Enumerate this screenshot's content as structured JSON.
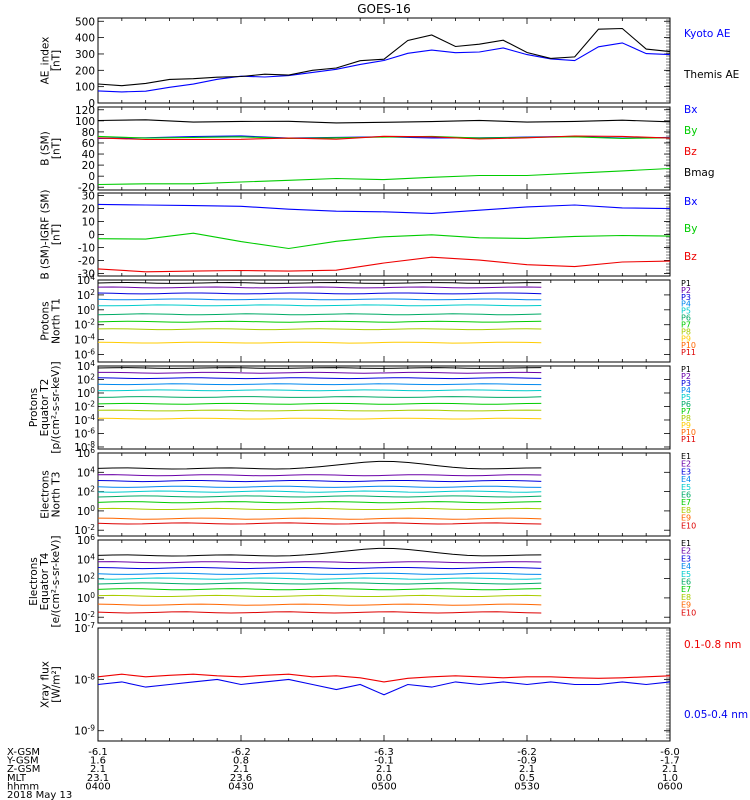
{
  "title": "GOES-16",
  "footer": {
    "rows": [
      {
        "label": "X-GSM",
        "values": [
          "-6.1",
          "-6.2",
          "-6.3",
          "-6.2",
          "-6.0"
        ]
      },
      {
        "label": "Y-GSM",
        "values": [
          "1.6",
          "0.8",
          "-0.1",
          "-0.9",
          "-1.7"
        ]
      },
      {
        "label": "Z-GSM",
        "values": [
          "2.1",
          "2.1",
          "2.1",
          "2.1",
          "2.1"
        ]
      },
      {
        "label": "MLT",
        "values": [
          "23.1",
          "23.6",
          "0.0",
          "0.5",
          "1.0"
        ]
      },
      {
        "label": "hhmm",
        "values": [
          "0400",
          "0430",
          "0500",
          "0530",
          "0600"
        ]
      }
    ],
    "date": "2018 May 13"
  },
  "chart_data": [
    {
      "id": "ae",
      "type": "line",
      "ylabel": [
        "AE_index",
        "[nT]"
      ],
      "yticks": [
        "0",
        "100",
        "200",
        "300",
        "400",
        "500"
      ],
      "ylim": [
        0,
        520
      ],
      "x": [
        0,
        5,
        10,
        15,
        20,
        25,
        30,
        35,
        40,
        45,
        50,
        55,
        60,
        65,
        70,
        75,
        80,
        85,
        90,
        95,
        100,
        105,
        110,
        115,
        120
      ],
      "series": [
        {
          "name": "Kyoto AE",
          "color": "#0000ff",
          "values": [
            80,
            70,
            70,
            90,
            120,
            145,
            160,
            165,
            170,
            185,
            200,
            240,
            260,
            300,
            330,
            310,
            310,
            330,
            300,
            270,
            255,
            350,
            370,
            300,
            290
          ]
        },
        {
          "name": "Themis AE",
          "color": "#000000",
          "values": [
            110,
            110,
            120,
            140,
            155,
            160,
            160,
            170,
            175,
            200,
            210,
            265,
            270,
            380,
            410,
            350,
            360,
            380,
            315,
            275,
            280,
            445,
            460,
            330,
            310
          ]
        }
      ]
    },
    {
      "id": "bsm",
      "type": "line",
      "ylabel": [
        "B (SM)",
        "[nT]"
      ],
      "yticks": [
        "-20",
        "0",
        "20",
        "40",
        "60",
        "80",
        "100",
        "120"
      ],
      "ylim": [
        -25,
        125
      ],
      "x": [
        0,
        10,
        20,
        30,
        40,
        50,
        60,
        70,
        80,
        90,
        100,
        110,
        120
      ],
      "series": [
        {
          "name": "Bx",
          "color": "#0000ff",
          "values": [
            70,
            70,
            71,
            71,
            70,
            70,
            70,
            71,
            70,
            70,
            70,
            70,
            70
          ]
        },
        {
          "name": "By",
          "color": "#00cc00",
          "values": [
            70,
            70,
            70,
            70,
            70,
            70,
            70,
            70,
            70,
            70,
            70,
            70,
            70
          ]
        },
        {
          "name": "Bz",
          "color": "#ee0000",
          "values": [
            68,
            68,
            67,
            66,
            67,
            68,
            72,
            70,
            69,
            70,
            72,
            70,
            70
          ]
        },
        {
          "name": "Bmag",
          "color": "#000000",
          "values": [
            100,
            100,
            99,
            99,
            98,
            98,
            98,
            98,
            99,
            99,
            99,
            100,
            100
          ]
        },
        {
          "name": "",
          "color": "#00cc00",
          "values": [
            -15,
            -15,
            -12,
            -10,
            -8,
            -6,
            -5,
            -2,
            0,
            3,
            6,
            9,
            12
          ]
        }
      ]
    },
    {
      "id": "bigrf",
      "type": "line",
      "ylabel": [
        "B (SM)-IGRF (SM)",
        "[nT]"
      ],
      "yticks": [
        "-30",
        "-20",
        "-10",
        "0",
        "10",
        "20",
        "30"
      ],
      "ylim": [
        -32,
        32
      ],
      "x": [
        0,
        10,
        20,
        30,
        40,
        50,
        60,
        70,
        80,
        90,
        100,
        110,
        120
      ],
      "series": [
        {
          "name": "Bx",
          "color": "#0000ff",
          "values": [
            24,
            23,
            22,
            21,
            20,
            18,
            17,
            17,
            19,
            21,
            22,
            21,
            20
          ]
        },
        {
          "name": "By",
          "color": "#00cc00",
          "values": [
            -4,
            -3,
            1,
            -6,
            -10,
            -5,
            -2,
            -1,
            -2,
            -3,
            -2,
            0,
            -1
          ]
        },
        {
          "name": "Bz",
          "color": "#ee0000",
          "values": [
            -27,
            -28,
            -28,
            -28,
            -29,
            -27,
            -22,
            -18,
            -19,
            -23,
            -25,
            -22,
            -20
          ]
        }
      ]
    },
    {
      "id": "pn",
      "type": "line",
      "logscale": true,
      "ylabel": [
        "Protons",
        "North T1"
      ],
      "yticks": [
        "10^4",
        "10^2",
        "10^0",
        "10^-2",
        "10^-4",
        "10^-6"
      ],
      "ylim": [
        -7,
        4
      ],
      "xmax": 93,
      "names": [
        "P1",
        "P2",
        "P3",
        "P4",
        "P5",
        "P6",
        "P7",
        "P8",
        "P9",
        "P10",
        "P11"
      ],
      "colors": [
        "#000000",
        "#6a00a8",
        "#0000dd",
        "#0088ee",
        "#00cccc",
        "#00aa66",
        "#00cc00",
        "#aacc00",
        "#ffcc00",
        "#ff6600",
        "#dd0000"
      ],
      "levels": [
        3.6,
        3.0,
        2.2,
        1.4,
        0.6,
        -0.6,
        -1.6,
        -2.6,
        -4.4,
        null,
        null
      ]
    },
    {
      "id": "pe",
      "type": "line",
      "logscale": true,
      "ylabel": [
        "Protons",
        "Equator T2",
        "[p/(cm²-s-sr-keV)]"
      ],
      "yticks": [
        "10^4",
        "10^2",
        "10^0",
        "10^-2",
        "10^-4",
        "10^-6",
        "10^-8"
      ],
      "ylim": [
        -8.3,
        4
      ],
      "xmax": 93,
      "names": [
        "P1",
        "P2",
        "P3",
        "P4",
        "P5",
        "P6",
        "P7",
        "P8",
        "P9",
        "P10",
        "P11"
      ],
      "colors": [
        "#000000",
        "#6a00a8",
        "#0000dd",
        "#0088ee",
        "#00cccc",
        "#00aa66",
        "#00cc00",
        "#aacc00",
        "#ffcc00",
        "#ff6600",
        "#dd0000"
      ],
      "levels": [
        3.7,
        3.0,
        2.2,
        1.3,
        0.4,
        -0.6,
        -1.6,
        -2.6,
        -3.8,
        null,
        null
      ]
    },
    {
      "id": "en",
      "type": "line",
      "logscale": true,
      "ylabel": [
        "Electrons",
        "North T3"
      ],
      "yticks": [
        "10^6",
        "10^4",
        "10^2",
        "10^0",
        "10^-2"
      ],
      "ylim": [
        -2.6,
        6
      ],
      "xmax": 93,
      "names": [
        "E1",
        "E2",
        "E3",
        "E4",
        "E5",
        "E6",
        "E7",
        "E8",
        "E9",
        "E10"
      ],
      "colors": [
        "#000000",
        "#6a00a8",
        "#0000dd",
        "#0088ee",
        "#00cccc",
        "#00aa66",
        "#00cc00",
        "#aacc00",
        "#ff6600",
        "#dd0000"
      ],
      "levels": [
        4.4,
        3.7,
        3.1,
        2.5,
        2.0,
        1.5,
        0.9,
        0.2,
        -0.8,
        -1.3
      ]
    },
    {
      "id": "ee",
      "type": "line",
      "logscale": true,
      "ylabel": [
        "Electrons",
        "Equator T4",
        "[e/(cm²-s-sr-keV)]"
      ],
      "yticks": [
        "10^6",
        "10^4",
        "10^2",
        "10^0",
        "10^-2"
      ],
      "ylim": [
        -2.6,
        6
      ],
      "xmax": 93,
      "names": [
        "E1",
        "E2",
        "E3",
        "E4",
        "E5",
        "E6",
        "E7",
        "E8",
        "E9",
        "E10"
      ],
      "colors": [
        "#000000",
        "#6a00a8",
        "#0000dd",
        "#0088ee",
        "#00cccc",
        "#00aa66",
        "#00cc00",
        "#aacc00",
        "#ff6600",
        "#dd0000"
      ],
      "levels": [
        4.4,
        3.7,
        3.1,
        2.5,
        2.0,
        1.5,
        0.9,
        0.2,
        -0.7,
        -1.5
      ]
    },
    {
      "id": "xray",
      "type": "line",
      "logscale": true,
      "ylabel": [
        "Xray flux",
        "[W/m²]"
      ],
      "yticks": [
        "10^-7",
        "10^-8",
        "10^-9"
      ],
      "ylim": [
        -9.2,
        -7
      ],
      "x": [
        0,
        5,
        10,
        15,
        20,
        25,
        30,
        35,
        40,
        45,
        50,
        55,
        60,
        65,
        70,
        75,
        80,
        85,
        90,
        95,
        100,
        105,
        110,
        115,
        120
      ],
      "series": [
        {
          "name": "0.1-0.8 nm",
          "color": "#ee0000",
          "values": [
            -7.95,
            -7.9,
            -7.95,
            -7.92,
            -7.9,
            -7.93,
            -7.95,
            -7.92,
            -7.9,
            -7.95,
            -7.93,
            -7.97,
            -8.05,
            -7.98,
            -7.95,
            -7.93,
            -7.95,
            -7.97,
            -7.95,
            -7.95,
            -7.97,
            -7.98,
            -7.97,
            -7.95,
            -7.93
          ]
        },
        {
          "name": "0.05-0.4 nm",
          "color": "#0000ee",
          "values": [
            -8.1,
            -8.05,
            -8.15,
            -8.1,
            -8.05,
            -8.0,
            -8.1,
            -8.05,
            -8.0,
            -8.1,
            -8.2,
            -8.1,
            -8.3,
            -8.1,
            -8.15,
            -8.05,
            -8.1,
            -8.05,
            -8.1,
            -8.05,
            -8.1,
            -8.1,
            -8.05,
            -8.1,
            -8.05
          ]
        }
      ]
    }
  ]
}
